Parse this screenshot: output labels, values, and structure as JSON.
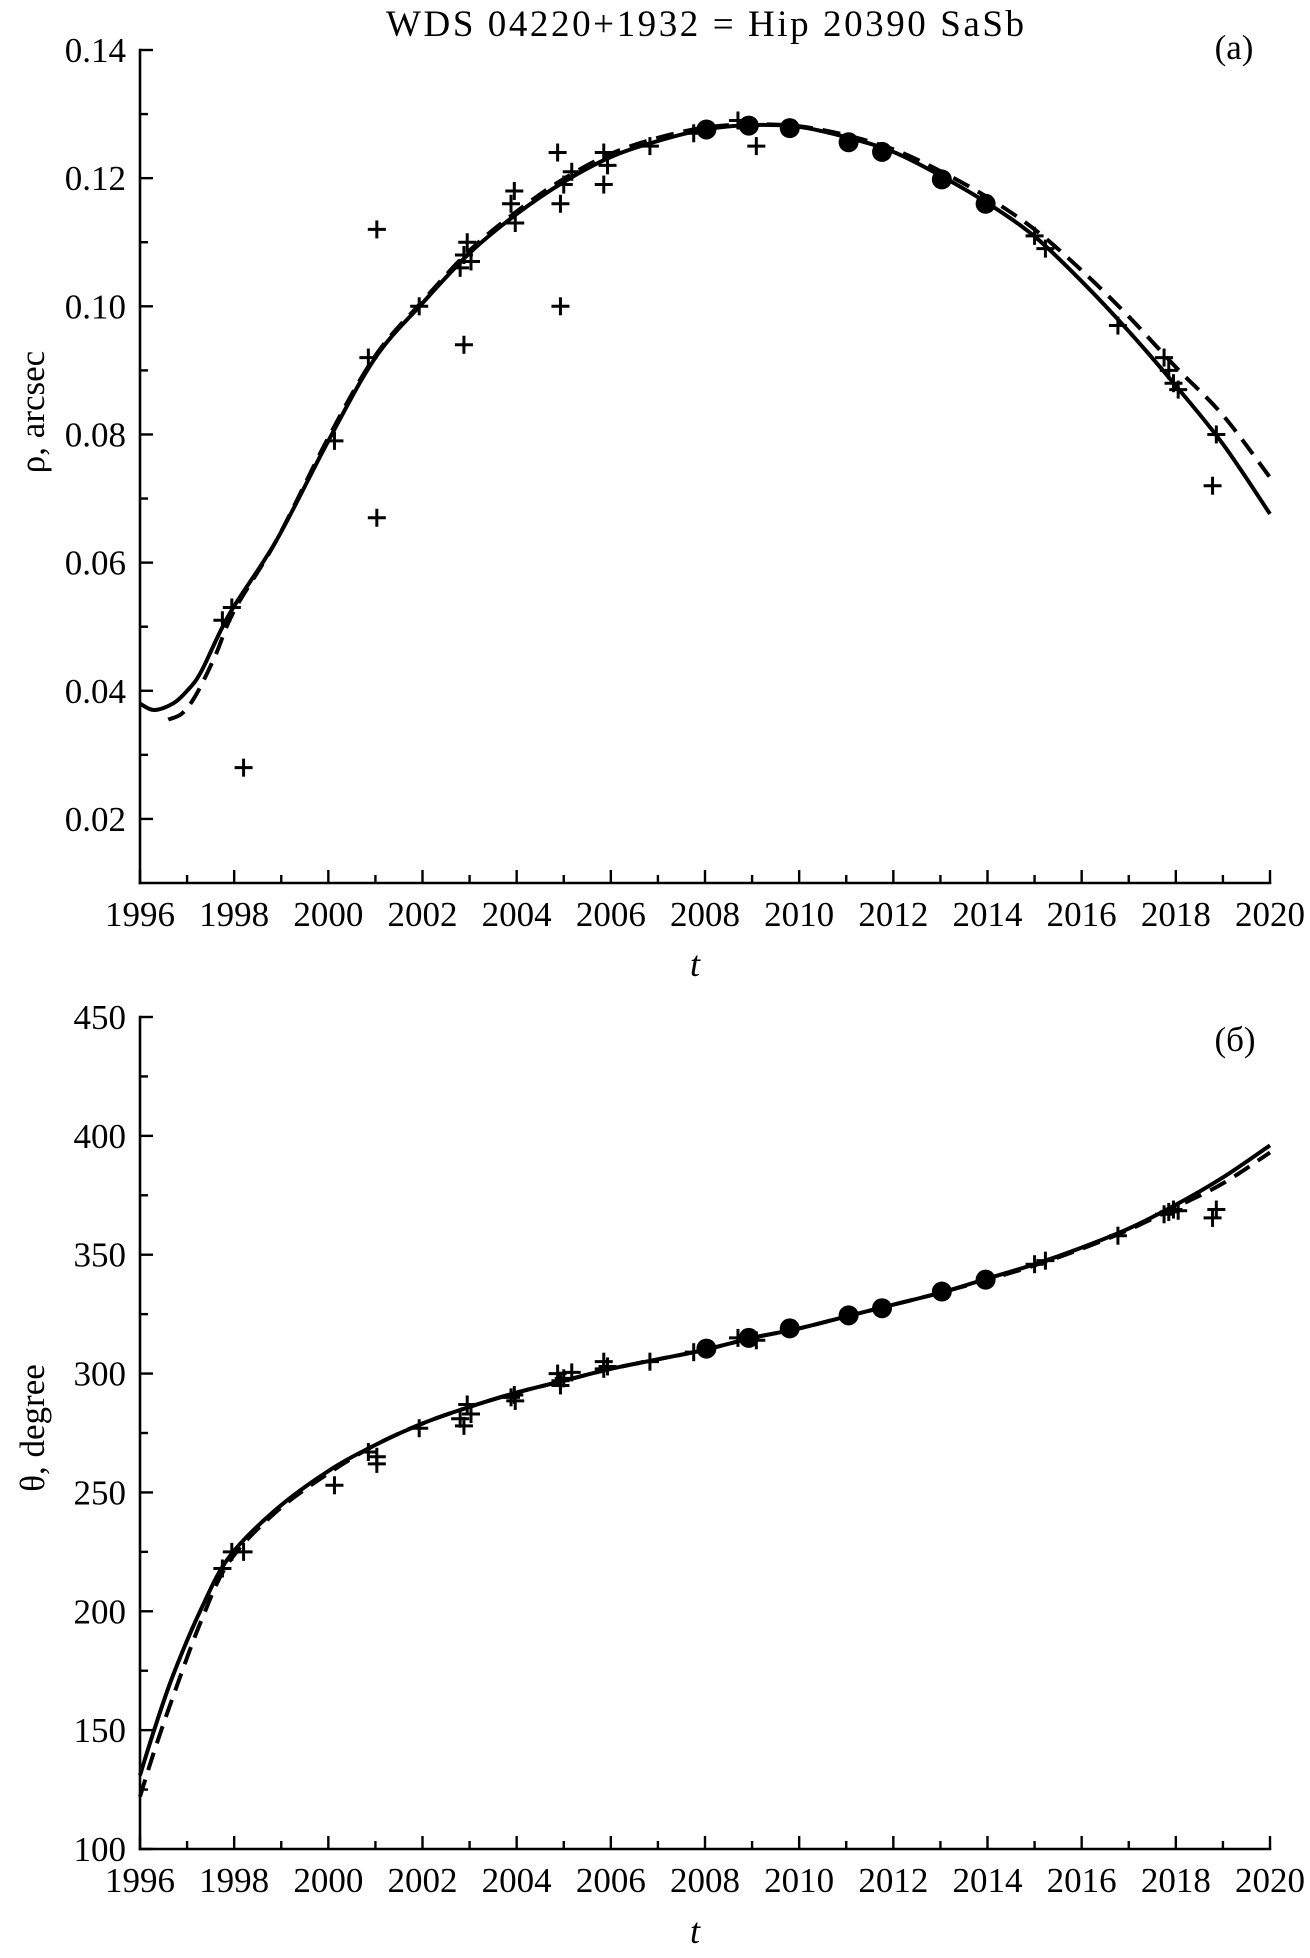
{
  "chart_data": [
    {
      "type": "scatter",
      "title": "WDS 04220+1932 = Hip 20390 SaSb",
      "panel_label": "(a)",
      "xlabel": "t",
      "ylabel": "ρ, arcsec",
      "xlim": [
        1996,
        2020
      ],
      "ylim": [
        0.01,
        0.14
      ],
      "grid": false,
      "x_ticks": [
        "1996",
        "1998",
        "2000",
        "2002",
        "2004",
        "2006",
        "2008",
        "2010",
        "2012",
        "2014",
        "2016",
        "2018",
        "2020"
      ],
      "y_ticks": [
        "0.02",
        "0.04",
        "0.06",
        "0.08",
        "0.10",
        "0.12",
        "0.14"
      ],
      "series": [
        {
          "type": "line",
          "style": "solid",
          "points": [
            [
              1996.0,
              0.038
            ],
            [
              1996.3,
              0.037
            ],
            [
              1996.7,
              0.038
            ],
            [
              1997.0,
              0.04
            ],
            [
              1997.3,
              0.043
            ],
            [
              1997.9,
              0.052
            ],
            [
              1998.9,
              0.0635
            ],
            [
              2000.0,
              0.079
            ],
            [
              2001.0,
              0.092
            ],
            [
              2002.0,
              0.1005
            ],
            [
              2003.0,
              0.1083
            ],
            [
              2004.0,
              0.1144
            ],
            [
              2005.0,
              0.1194
            ],
            [
              2006.0,
              0.1233
            ],
            [
              2007.0,
              0.1258
            ],
            [
              2008.0,
              0.1276
            ],
            [
              2009.0,
              0.1283
            ],
            [
              2010.0,
              0.128
            ],
            [
              2011.0,
              0.1264
            ],
            [
              2012.0,
              0.1241
            ],
            [
              2013.0,
              0.1204
            ],
            [
              2014.0,
              0.1161
            ],
            [
              2015.0,
              0.1109
            ],
            [
              2016.0,
              0.1039
            ],
            [
              2017.0,
              0.0961
            ],
            [
              2018.0,
              0.0876
            ],
            [
              2019.0,
              0.0785
            ],
            [
              2020.0,
              0.0676
            ]
          ]
        },
        {
          "type": "line",
          "style": "dashed",
          "points": [
            [
              1996.6,
              0.0355
            ],
            [
              1996.9,
              0.0365
            ],
            [
              1997.2,
              0.0395
            ],
            [
              1997.6,
              0.0455
            ],
            [
              1998.0,
              0.0525
            ],
            [
              1998.9,
              0.0635
            ],
            [
              2000.0,
              0.0795
            ],
            [
              2001.0,
              0.0923
            ],
            [
              2002.0,
              0.1008
            ],
            [
              2003.0,
              0.1087
            ],
            [
              2004.0,
              0.1148
            ],
            [
              2005.0,
              0.1199
            ],
            [
              2006.0,
              0.1238
            ],
            [
              2007.0,
              0.1263
            ],
            [
              2008.0,
              0.1279
            ],
            [
              2009.0,
              0.1284
            ],
            [
              2010.0,
              0.1281
            ],
            [
              2011.0,
              0.1267
            ],
            [
              2012.0,
              0.1245
            ],
            [
              2013.0,
              0.1211
            ],
            [
              2014.0,
              0.117
            ],
            [
              2015.0,
              0.112
            ],
            [
              2016.0,
              0.1056
            ],
            [
              2017.0,
              0.0984
            ],
            [
              2018.0,
              0.0905
            ],
            [
              2019.0,
              0.083
            ],
            [
              2020.0,
              0.0733
            ]
          ]
        },
        {
          "type": "scatter",
          "marker": "cross",
          "points": [
            [
              1997.75,
              0.051
            ],
            [
              1997.95,
              0.053
            ],
            [
              1998.2,
              0.028
            ],
            [
              2000.13,
              0.079
            ],
            [
              2000.85,
              0.092
            ],
            [
              2001.03,
              0.112
            ],
            [
              2001.03,
              0.067
            ],
            [
              2001.93,
              0.1
            ],
            [
              2002.8,
              0.106
            ],
            [
              2002.88,
              0.108
            ],
            [
              2002.95,
              0.11
            ],
            [
              2002.88,
              0.094
            ],
            [
              2003.03,
              0.107
            ],
            [
              2003.88,
              0.116
            ],
            [
              2003.95,
              0.118
            ],
            [
              2003.97,
              0.113
            ],
            [
              2004.87,
              0.124
            ],
            [
              2004.93,
              0.116
            ],
            [
              2004.93,
              0.1
            ],
            [
              2005.0,
              0.119
            ],
            [
              2005.17,
              0.121
            ],
            [
              2005.85,
              0.124
            ],
            [
              2005.85,
              0.119
            ],
            [
              2005.93,
              0.122
            ],
            [
              2006.83,
              0.125
            ],
            [
              2007.76,
              0.127
            ],
            [
              2008.7,
              0.129
            ],
            [
              2009.09,
              0.125
            ],
            [
              2015.0,
              0.111
            ],
            [
              2015.23,
              0.109
            ],
            [
              2016.77,
              0.097
            ],
            [
              2017.75,
              0.092
            ],
            [
              2017.85,
              0.09
            ],
            [
              2017.95,
              0.088
            ],
            [
              2018.05,
              0.087
            ],
            [
              2018.86,
              0.08
            ],
            [
              2018.78,
              0.072
            ]
          ]
        },
        {
          "type": "scatter",
          "marker": "dot",
          "points": [
            [
              2008.03,
              0.1276
            ],
            [
              2008.93,
              0.1282
            ],
            [
              2009.8,
              0.1278
            ],
            [
              2011.05,
              0.1256
            ],
            [
              2011.76,
              0.1241
            ],
            [
              2013.03,
              0.1198
            ],
            [
              2013.96,
              0.116
            ]
          ]
        }
      ]
    },
    {
      "type": "scatter",
      "panel_label": "(б)",
      "xlabel": "t",
      "ylabel": "θ, degree",
      "xlim": [
        1996,
        2020
      ],
      "ylim": [
        100,
        450
      ],
      "grid": false,
      "x_ticks": [
        "1996",
        "1998",
        "2000",
        "2002",
        "2004",
        "2006",
        "2008",
        "2010",
        "2012",
        "2014",
        "2016",
        "2018",
        "2020"
      ],
      "y_ticks": [
        "100",
        "150",
        "200",
        "250",
        "300",
        "350",
        "400",
        "450"
      ],
      "series": [
        {
          "type": "line",
          "style": "solid",
          "points": [
            [
              1996.0,
              131
            ],
            [
              1996.3,
              150
            ],
            [
              1996.7,
              173
            ],
            [
              1997.3,
              201
            ],
            [
              1997.9,
              223
            ],
            [
              1998.9,
              243
            ],
            [
              2000.0,
              259
            ],
            [
              2001.0,
              270
            ],
            [
              2002.0,
              279
            ],
            [
              2003.0,
              286
            ],
            [
              2004.0,
              292
            ],
            [
              2005.0,
              297
            ],
            [
              2006.0,
              302
            ],
            [
              2007.0,
              306
            ],
            [
              2008.0,
              310
            ],
            [
              2009.0,
              315
            ],
            [
              2010.0,
              319
            ],
            [
              2011.0,
              324
            ],
            [
              2012.0,
              329
            ],
            [
              2013.0,
              334
            ],
            [
              2014.0,
              340
            ],
            [
              2015.0,
              346
            ],
            [
              2016.0,
              353
            ],
            [
              2017.0,
              361
            ],
            [
              2018.0,
              371
            ],
            [
              2019.0,
              382.5
            ],
            [
              2020.0,
              396
            ]
          ]
        },
        {
          "type": "line",
          "style": "dashed",
          "points": [
            [
              1996.0,
              122
            ],
            [
              1996.3,
              141
            ],
            [
              1996.7,
              164
            ],
            [
              1997.3,
              196
            ],
            [
              1997.9,
              221
            ],
            [
              1998.9,
              242
            ],
            [
              2000.0,
              258
            ],
            [
              2001.0,
              270
            ],
            [
              2002.0,
              279
            ],
            [
              2003.0,
              286
            ],
            [
              2004.0,
              292
            ],
            [
              2005.0,
              297
            ],
            [
              2006.0,
              302
            ],
            [
              2007.0,
              306
            ],
            [
              2008.0,
              310
            ],
            [
              2009.0,
              315
            ],
            [
              2010.0,
              319
            ],
            [
              2011.0,
              324
            ],
            [
              2012.0,
              329
            ],
            [
              2013.0,
              334
            ],
            [
              2014.0,
              339.5
            ],
            [
              2015.0,
              345.5
            ],
            [
              2016.0,
              352.5
            ],
            [
              2017.0,
              360.5
            ],
            [
              2018.0,
              370
            ],
            [
              2019.0,
              380
            ],
            [
              2020.0,
              393
            ]
          ]
        },
        {
          "type": "scatter",
          "marker": "cross",
          "points": [
            [
              1997.75,
              218
            ],
            [
              1997.95,
              225
            ],
            [
              1998.2,
              225
            ],
            [
              2000.13,
              253
            ],
            [
              2000.85,
              267
            ],
            [
              2001.03,
              265
            ],
            [
              2001.03,
              262
            ],
            [
              2001.93,
              277
            ],
            [
              2002.8,
              281
            ],
            [
              2002.88,
              278
            ],
            [
              2002.95,
              287
            ],
            [
              2003.03,
              283
            ],
            [
              2003.88,
              290
            ],
            [
              2003.95,
              291
            ],
            [
              2003.97,
              288.5
            ],
            [
              2004.87,
              300
            ],
            [
              2004.93,
              295
            ],
            [
              2004.93,
              297
            ],
            [
              2005.0,
              298
            ],
            [
              2005.17,
              300.5
            ],
            [
              2005.85,
              305
            ],
            [
              2005.85,
              302
            ],
            [
              2005.93,
              303
            ],
            [
              2006.83,
              305
            ],
            [
              2007.76,
              309
            ],
            [
              2008.7,
              315
            ],
            [
              2009.09,
              314
            ],
            [
              2015.0,
              346
            ],
            [
              2015.23,
              347.5
            ],
            [
              2016.77,
              358
            ],
            [
              2017.75,
              367
            ],
            [
              2017.85,
              368
            ],
            [
              2017.95,
              369
            ],
            [
              2018.05,
              368.5
            ],
            [
              2018.86,
              369
            ],
            [
              2018.78,
              365.5
            ]
          ]
        },
        {
          "type": "scatter",
          "marker": "dot",
          "points": [
            [
              2008.03,
              310.5
            ],
            [
              2008.93,
              315
            ],
            [
              2009.8,
              319
            ],
            [
              2011.05,
              324.5
            ],
            [
              2011.76,
              327.5
            ],
            [
              2013.03,
              334.5
            ],
            [
              2013.96,
              339.5
            ]
          ]
        }
      ]
    }
  ]
}
